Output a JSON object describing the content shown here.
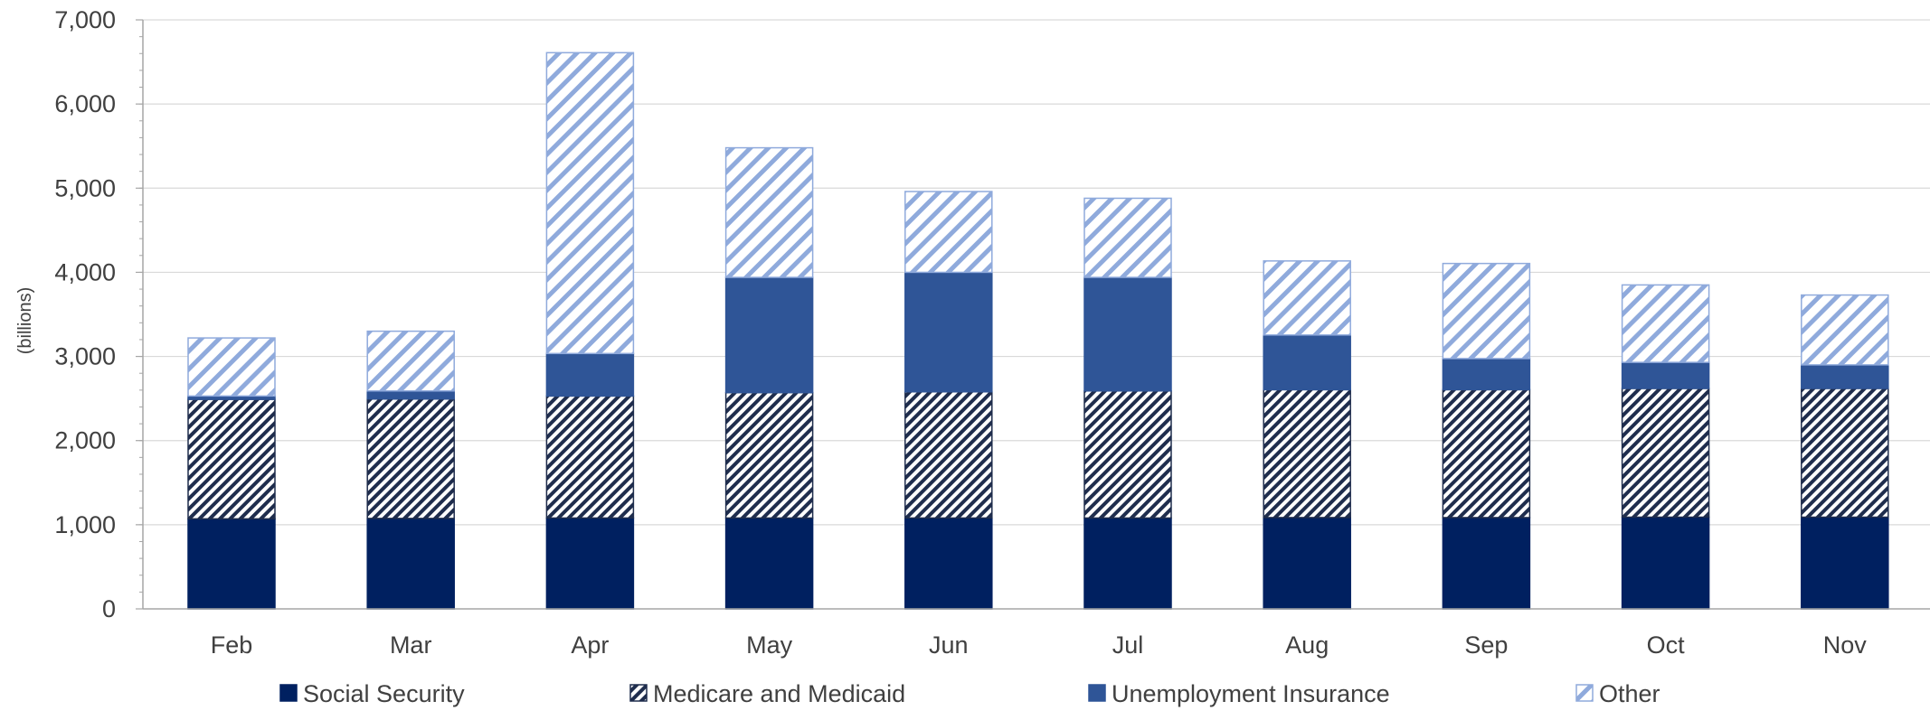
{
  "chart_data": {
    "type": "bar",
    "stacked": true,
    "categories": [
      "Feb",
      "Mar",
      "Apr",
      "May",
      "Jun",
      "Jul",
      "Aug",
      "Sep",
      "Oct",
      "Nov"
    ],
    "series": [
      {
        "name": "Social Security",
        "values": [
          1070,
          1075,
          1080,
          1080,
          1080,
          1080,
          1085,
          1085,
          1090,
          1090
        ],
        "color": "#002060",
        "pattern": "solid"
      },
      {
        "name": "Medicare and Medicaid",
        "values": [
          1420,
          1420,
          1450,
          1490,
          1500,
          1510,
          1520,
          1520,
          1530,
          1530
        ],
        "color": "#1f2d4d",
        "pattern": "hatch-dense"
      },
      {
        "name": "Unemployment Insurance",
        "values": [
          40,
          95,
          505,
          1370,
          1420,
          1350,
          650,
          370,
          310,
          280
        ],
        "color": "#2f5597",
        "pattern": "solid"
      },
      {
        "name": "Other",
        "values": [
          690,
          710,
          3575,
          1540,
          960,
          940,
          880,
          1130,
          920,
          830
        ],
        "color": "#8faadc",
        "pattern": "hatch-light"
      }
    ],
    "ylabel": "(billions)",
    "ylim": [
      0,
      7000
    ],
    "yticks": [
      "0",
      "1,000",
      "2,000",
      "3,000",
      "4,000",
      "5,000",
      "6,000",
      "7,000"
    ],
    "grid": true,
    "legend_position": "bottom"
  }
}
